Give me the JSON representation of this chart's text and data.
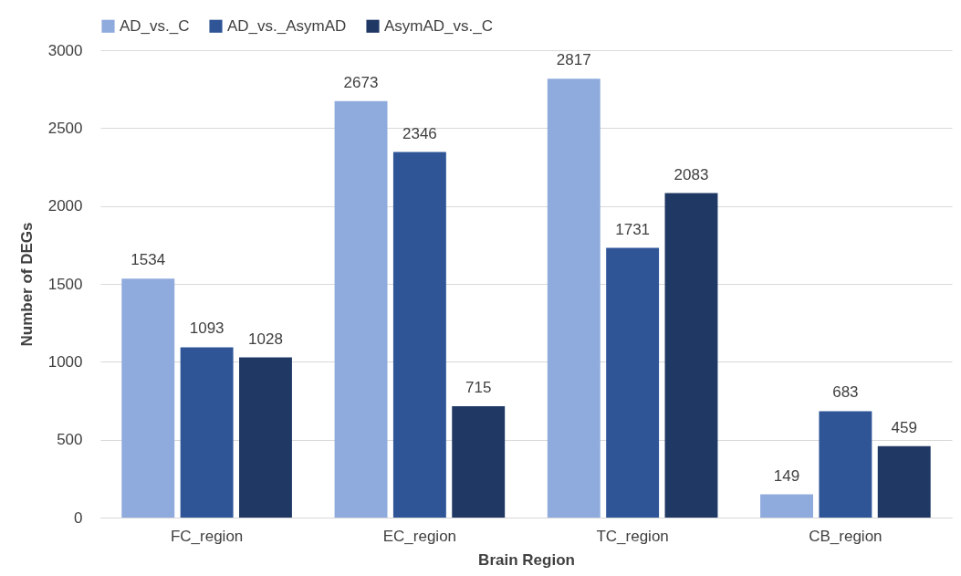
{
  "chart_data": {
    "type": "bar",
    "xlabel": "Brain Region",
    "ylabel": "Number of DEGs",
    "categories": [
      "FC_region",
      "EC_region",
      "TC_region",
      "CB_region"
    ],
    "series": [
      {
        "name": "AD_vs._C",
        "color": "#8faadc",
        "values": [
          1534,
          2673,
          2817,
          149
        ]
      },
      {
        "name": "AD_vs._AsymAD",
        "color": "#2f5597",
        "values": [
          1093,
          2346,
          1731,
          683
        ]
      },
      {
        "name": "AsymAD_vs._C",
        "color": "#203864",
        "values": [
          1028,
          715,
          2083,
          459
        ]
      }
    ],
    "ylim": [
      0,
      3000
    ],
    "yticks": [
      0,
      500,
      1000,
      1500,
      2000,
      2500,
      3000
    ],
    "grid": "y",
    "legend": "top",
    "data_labels": true
  }
}
